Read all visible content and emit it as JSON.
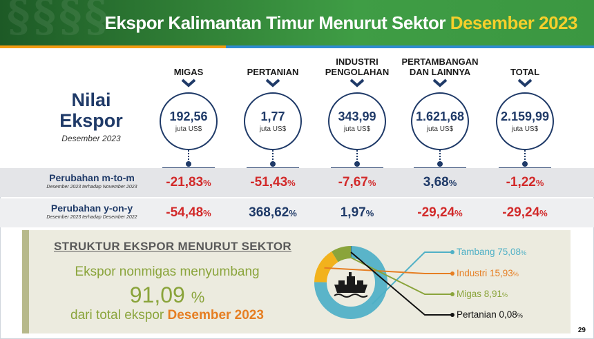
{
  "header": {
    "title_main": "Ekspor Kalimantan Timur Menurut Sektor",
    "title_highlight": "Desember 2023"
  },
  "nilai": {
    "line1": "Nilai",
    "line2": "Ekspor",
    "period": "Desember 2023"
  },
  "sectors": [
    {
      "label": "MIGAS",
      "value": "192,56",
      "unit": "juta US$",
      "mtm": "-21,83",
      "yoy": "-54,48"
    },
    {
      "label": "PERTANIAN",
      "value": "1,77",
      "unit": "juta US$",
      "mtm": "-51,43",
      "yoy": "368,62"
    },
    {
      "label": "INDUSTRI PENGOLAHAN",
      "value": "343,99",
      "unit": "juta US$",
      "mtm": "-7,67",
      "yoy": "1,97"
    },
    {
      "label": "PERTAMBANGAN DAN LAINNYA",
      "value": "1.621,68",
      "unit": "juta US$",
      "mtm": "3,68",
      "yoy": "-29,24"
    },
    {
      "label": "TOTAL",
      "value": "2.159,99",
      "unit": "juta US$",
      "mtm": "-1,22",
      "yoy": "-29,24"
    }
  ],
  "pct_sign": "%",
  "rows": {
    "mtm_label": "Perubahan m-to-m",
    "mtm_sub": "Desember 2023 terhadap November 2023",
    "yoy_label": "Perubahan y-on-y",
    "yoy_sub": "Desember 2023 terhadap Desember 2022"
  },
  "structure": {
    "title": "STRUKTUR EKSPOR MENURUT SEKTOR",
    "line1": "Ekspor nonmigas menyumbang",
    "big_value": "91,09",
    "big_unit": "%",
    "line3_prefix": "dari total ekspor",
    "line3_highlight": "Desember 2023"
  },
  "chart_data": {
    "type": "pie",
    "donut": true,
    "categories": [
      "Tambang",
      "Industri",
      "Migas",
      "Pertanian"
    ],
    "values": [
      75.08,
      15.93,
      8.91,
      0.08
    ],
    "labels": [
      "Tambang 75,08",
      "Industri 15,93",
      "Migas 8,91",
      "Pertanian 0,08"
    ],
    "percent_symbol": "%",
    "colors": [
      "#5ab4c9",
      "#f2b21c",
      "#8aa43b",
      "#111111"
    ],
    "label_colors": [
      "#4fb0c6",
      "#e67e22",
      "#8aa43b",
      "#111111"
    ],
    "center_icon": "cargo-ship-icon"
  },
  "page_number": "29",
  "colors": {
    "navy": "#1f3a68",
    "negative": "#d22a2a",
    "header_green": "#3b9741",
    "highlight_yellow": "#f5cf2b",
    "accent_orange": "#e67e22",
    "olive": "#8aa43b"
  }
}
